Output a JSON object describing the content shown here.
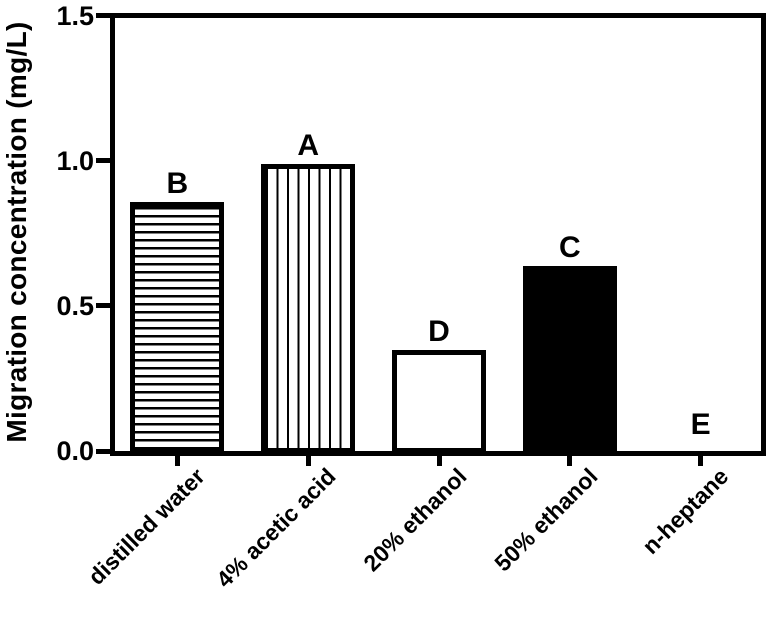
{
  "figure": {
    "background": "#ffffff",
    "foreground": "#000000"
  },
  "chart_data": {
    "type": "bar",
    "title": "",
    "xlabel": "",
    "ylabel": "Migration concentration (mg/L)",
    "ylim": [
      0,
      1.5
    ],
    "yticks": [
      "0.0",
      "0.5",
      "1.0",
      "1.5"
    ],
    "categories": [
      "distilled water",
      "4% acetic acid",
      "20% ethanol",
      "50% ethanol",
      "n-heptane"
    ],
    "values": [
      0.85,
      0.98,
      0.34,
      0.63,
      0
    ],
    "bar_labels": [
      "B",
      "A",
      "D",
      "C",
      "E"
    ],
    "bar_patterns": [
      "horizontal-stripes",
      "vertical-stripes",
      "white",
      "solid-black",
      "none"
    ],
    "grid": false,
    "legend_position": "none",
    "frame": "box",
    "bar_outline_color": "#000000",
    "bar_fill_colors": [
      "#ffffff",
      "#ffffff",
      "#ffffff",
      "#000000",
      "none"
    ]
  }
}
